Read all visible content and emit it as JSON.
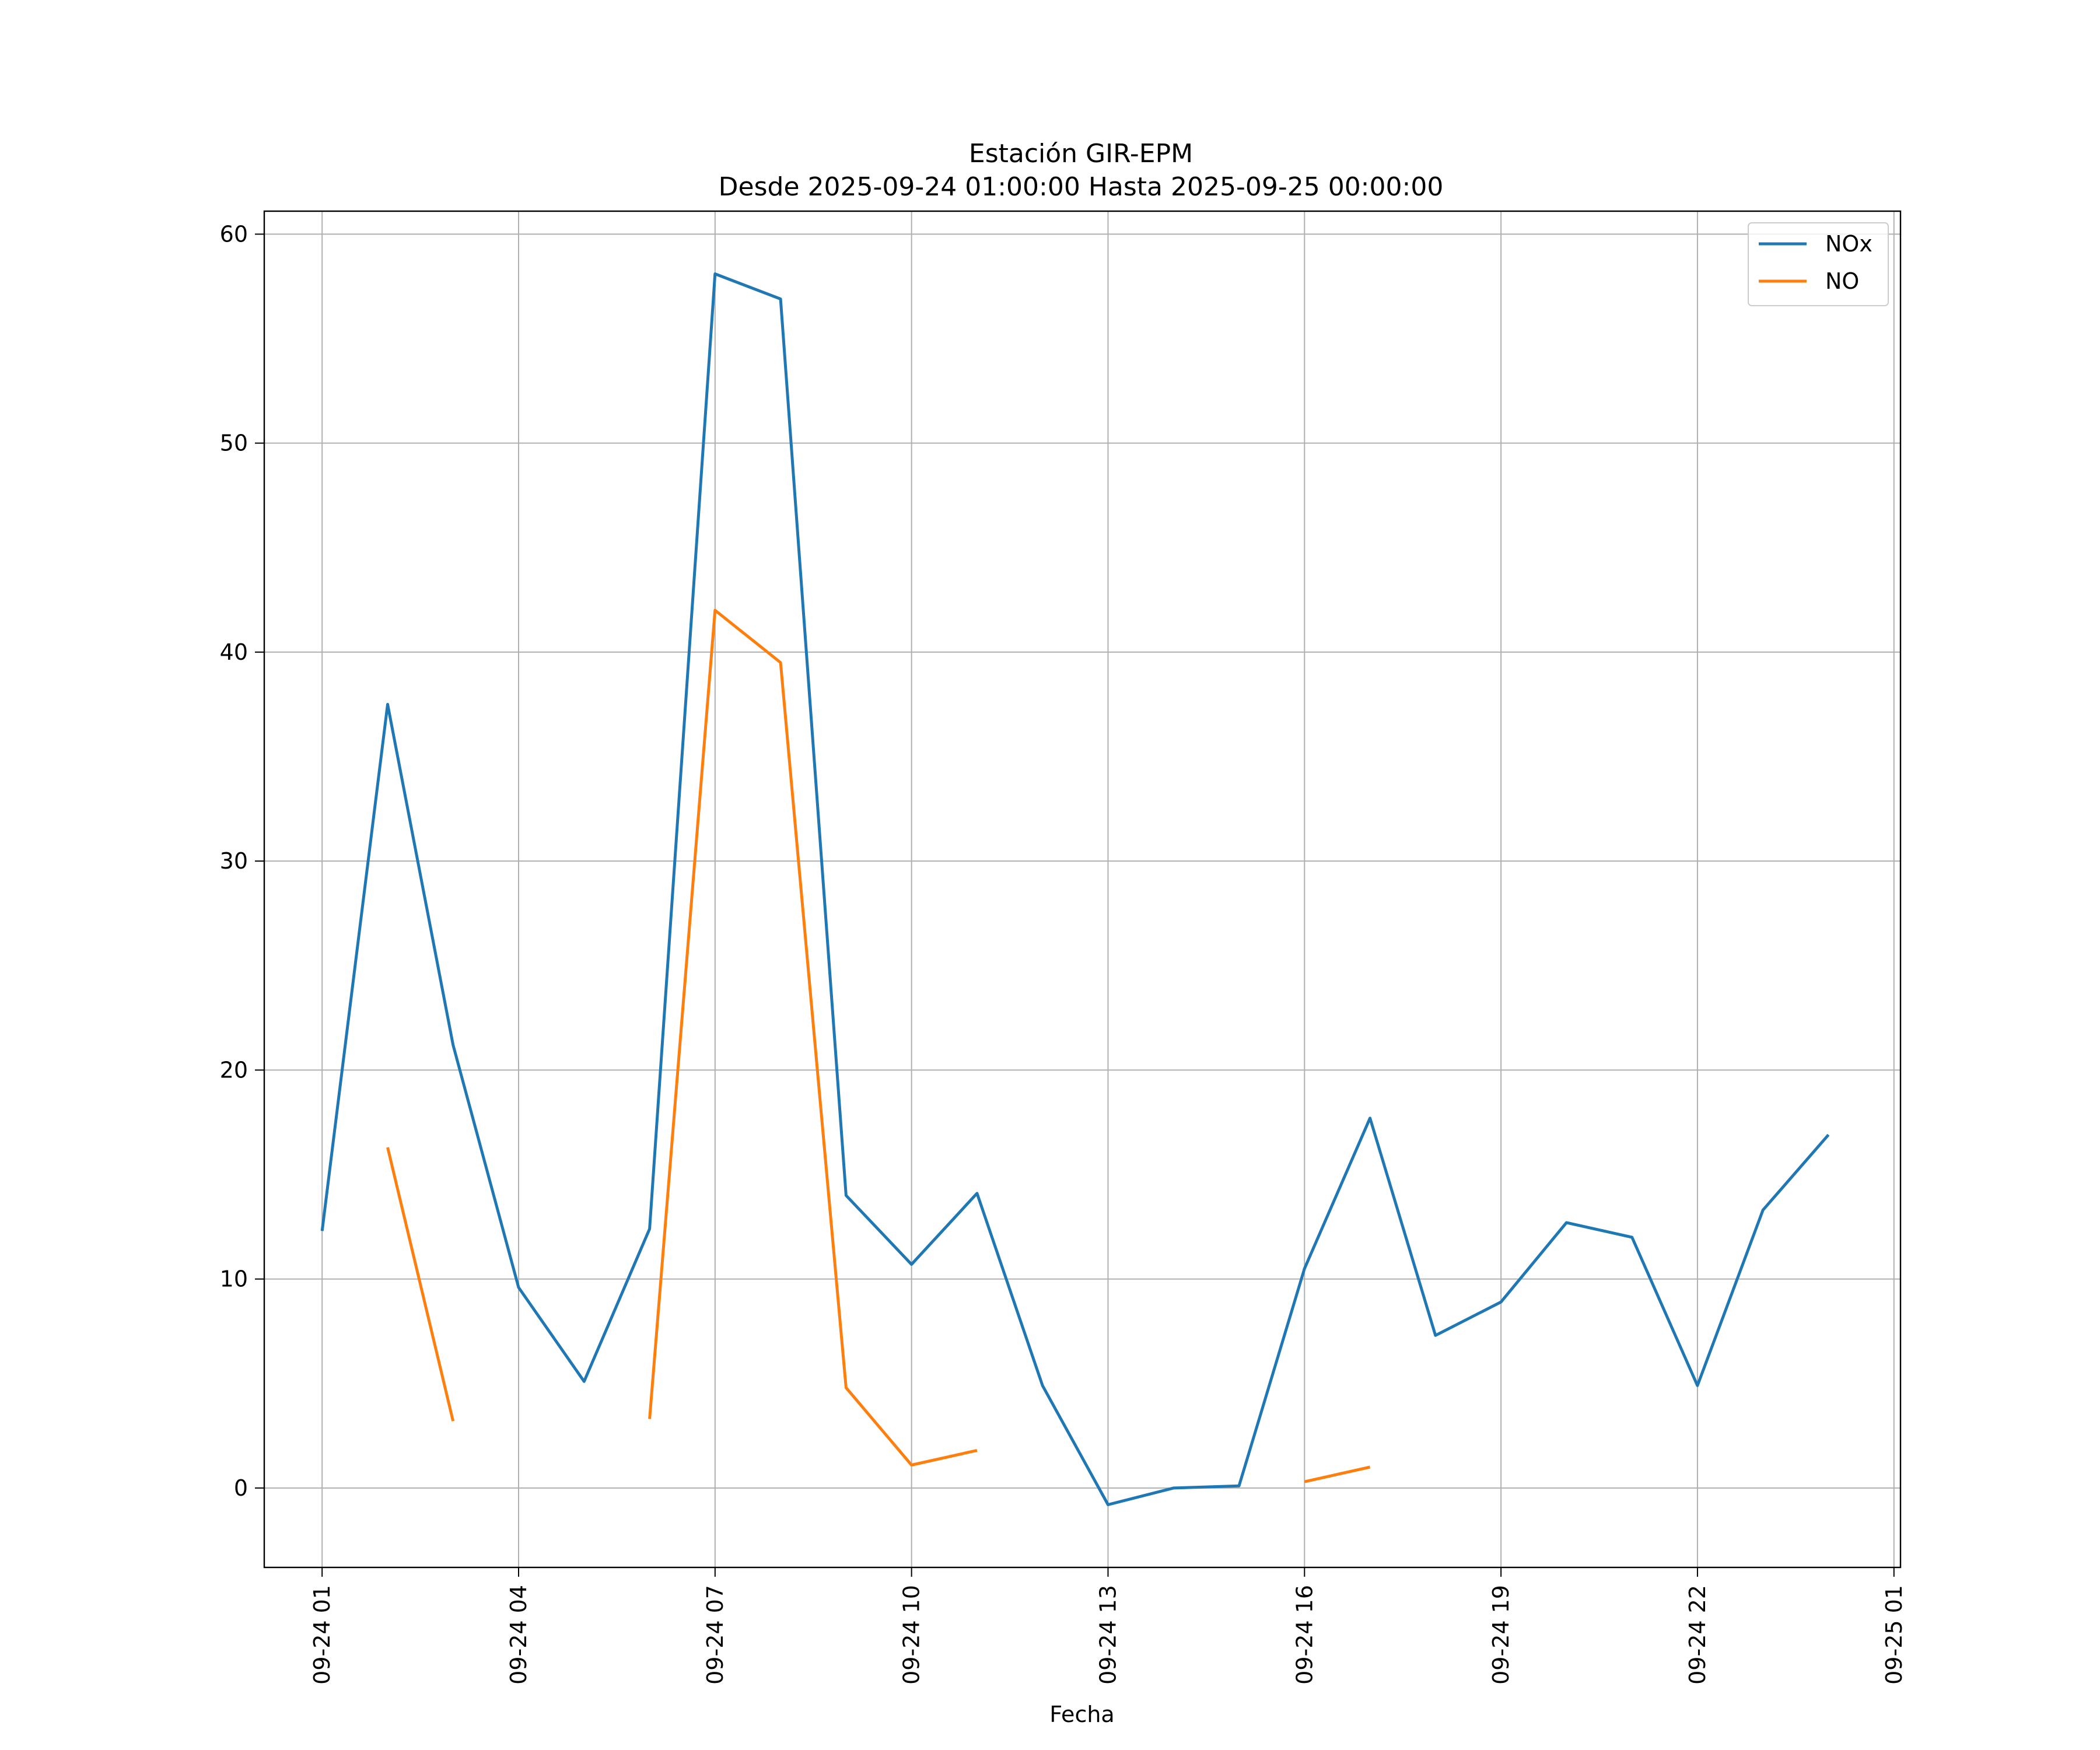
{
  "chart_data": {
    "type": "line",
    "title": "Estación GIR-EPM",
    "subtitle": "Desde 2025-09-24 01:00:00 Hasta 2025-09-25 00:00:00",
    "xlabel": "Fecha",
    "ylabel": "",
    "x": [
      "2025-09-24 01:00",
      "2025-09-24 02:00",
      "2025-09-24 03:00",
      "2025-09-24 04:00",
      "2025-09-24 05:00",
      "2025-09-24 06:00",
      "2025-09-24 07:00",
      "2025-09-24 08:00",
      "2025-09-24 09:00",
      "2025-09-24 10:00",
      "2025-09-24 11:00",
      "2025-09-24 12:00",
      "2025-09-24 13:00",
      "2025-09-24 14:00",
      "2025-09-24 15:00",
      "2025-09-24 16:00",
      "2025-09-24 17:00",
      "2025-09-24 18:00",
      "2025-09-24 19:00",
      "2025-09-24 20:00",
      "2025-09-24 21:00",
      "2025-09-24 22:00",
      "2025-09-24 23:00",
      "2025-09-25 00:00"
    ],
    "x_ticks": [
      "09-24 01",
      "09-24 04",
      "09-24 07",
      "09-24 10",
      "09-24 13",
      "09-24 16",
      "09-24 19",
      "09-24 22",
      "09-25 01"
    ],
    "x_tick_values": [
      "2025-09-24 01:00",
      "2025-09-24 04:00",
      "2025-09-24 07:00",
      "2025-09-24 10:00",
      "2025-09-24 13:00",
      "2025-09-24 16:00",
      "2025-09-24 19:00",
      "2025-09-24 22:00",
      "2025-09-25 01:00"
    ],
    "xlim": [
      "2025-09-24 00:07",
      "2025-09-25 01:06"
    ],
    "y_ticks": [
      0,
      10,
      20,
      30,
      40,
      50,
      60
    ],
    "ylim": [
      -3.8,
      61.1
    ],
    "grid": true,
    "legend_position": "top-right",
    "series": [
      {
        "name": "NOx",
        "color": "#1f77b4",
        "values": [
          12.3,
          37.5,
          21.2,
          9.6,
          5.1,
          12.4,
          58.1,
          56.9,
          14.0,
          10.7,
          14.1,
          4.9,
          -0.8,
          0.0,
          0.1,
          10.5,
          17.7,
          7.3,
          8.9,
          12.7,
          12.0,
          4.9,
          13.3,
          16.9
        ]
      },
      {
        "name": "NO",
        "color": "#ff7f0e",
        "values": [
          null,
          16.3,
          3.2,
          null,
          null,
          3.3,
          42.0,
          39.5,
          4.8,
          1.1,
          1.8,
          null,
          null,
          null,
          null,
          0.3,
          1.0,
          null,
          null,
          null,
          null,
          null,
          null,
          null
        ]
      }
    ]
  }
}
